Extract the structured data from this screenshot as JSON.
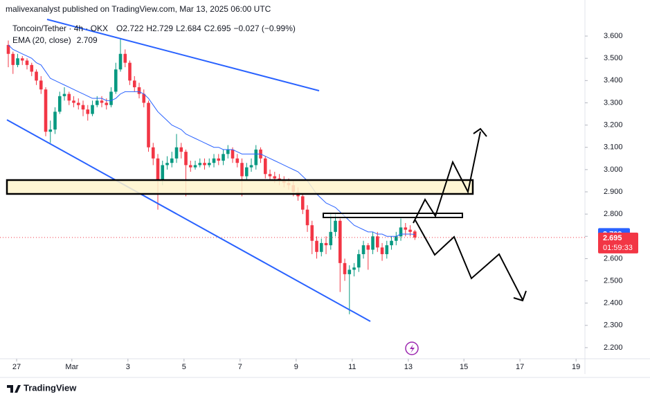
{
  "header": {
    "publisher": "malivexanalyst published on TradingView.com, Mar 13, 2025 06:00 UTC"
  },
  "chart_data": {
    "type": "candlestick",
    "title": "Toncoin/Tether · 4h · OKX",
    "ohlc_legend": [
      {
        "label": "O",
        "value": "2.722"
      },
      {
        "label": "H",
        "value": "2.729"
      },
      {
        "label": "L",
        "value": "2.684"
      },
      {
        "label": "C",
        "value": "2.695"
      }
    ],
    "change": "−0.027 (−0.99%)",
    "up_color": "#089981",
    "down_color": "#f23645",
    "open": [
      3.56,
      3.52,
      3.47,
      3.5,
      3.49,
      3.47,
      3.44,
      3.4,
      3.36,
      3.17,
      3.18,
      3.26,
      3.33,
      3.34,
      3.31,
      3.3,
      3.29,
      3.27,
      3.25,
      3.29,
      3.31,
      3.3,
      3.29,
      3.35,
      3.45,
      3.52,
      3.48,
      3.4,
      3.37,
      3.34,
      3.3,
      3.1,
      3.05,
      2.95,
      3.02,
      3.03,
      3.05,
      3.1,
      3.08,
      3.02,
      3.01,
      3.02,
      3.03,
      3.02,
      3.03,
      3.05,
      3.04,
      3.07,
      3.09,
      3.05,
      3.03,
      2.97,
      3.01,
      3.02,
      3.09,
      3.05,
      2.98,
      2.97,
      2.96,
      2.95,
      2.94,
      2.93,
      2.9,
      2.88,
      2.82,
      2.75,
      2.68,
      2.63,
      2.67,
      2.66,
      2.72,
      2.77,
      2.58,
      2.53,
      2.55,
      2.56,
      2.62,
      2.66,
      2.64,
      2.7,
      2.65,
      2.62,
      2.66,
      2.68,
      2.7,
      2.74,
      2.73,
      2.722
    ],
    "high": [
      3.58,
      3.53,
      3.52,
      3.51,
      3.5,
      3.48,
      3.45,
      3.42,
      3.37,
      3.22,
      3.28,
      3.35,
      3.37,
      3.35,
      3.33,
      3.32,
      3.31,
      3.29,
      3.31,
      3.33,
      3.33,
      3.32,
      3.37,
      3.48,
      3.59,
      3.54,
      3.49,
      3.42,
      3.39,
      3.36,
      3.31,
      3.12,
      3.07,
      3.04,
      3.06,
      3.08,
      3.16,
      3.12,
      3.09,
      3.04,
      3.04,
      3.05,
      3.05,
      3.05,
      3.07,
      3.07,
      3.09,
      3.11,
      3.1,
      3.07,
      3.05,
      3.03,
      3.05,
      3.11,
      3.1,
      3.06,
      3.0,
      2.99,
      2.98,
      2.97,
      2.96,
      2.95,
      2.92,
      2.89,
      2.84,
      2.77,
      2.7,
      2.69,
      2.7,
      2.8,
      2.8,
      2.78,
      2.6,
      2.57,
      2.58,
      2.64,
      2.68,
      2.67,
      2.72,
      2.72,
      2.67,
      2.68,
      2.7,
      2.72,
      2.78,
      2.76,
      2.75,
      2.729
    ],
    "low": [
      3.46,
      3.43,
      3.46,
      3.47,
      3.45,
      3.42,
      3.38,
      3.34,
      3.15,
      3.12,
      3.16,
      3.25,
      3.31,
      3.29,
      3.28,
      3.27,
      3.24,
      3.22,
      3.24,
      3.28,
      3.28,
      3.27,
      3.28,
      3.34,
      3.44,
      3.46,
      3.38,
      3.35,
      3.32,
      3.28,
      3.08,
      3.02,
      2.82,
      2.93,
      3.0,
      3.01,
      3.03,
      3.05,
      2.88,
      2.99,
      3.0,
      3.01,
      3.0,
      3.01,
      3.01,
      3.02,
      3.02,
      3.05,
      3.03,
      3.01,
      2.88,
      2.95,
      2.99,
      3.0,
      3.03,
      2.96,
      2.95,
      2.94,
      2.93,
      2.92,
      2.91,
      2.88,
      2.86,
      2.8,
      2.72,
      2.62,
      2.6,
      2.61,
      2.62,
      2.64,
      2.7,
      2.45,
      2.5,
      2.35,
      2.52,
      2.54,
      2.6,
      2.55,
      2.62,
      2.63,
      2.59,
      2.6,
      2.64,
      2.66,
      2.68,
      2.7,
      2.7,
      2.684
    ],
    "close": [
      3.52,
      3.47,
      3.5,
      3.49,
      3.47,
      3.44,
      3.4,
      3.36,
      3.17,
      3.18,
      3.26,
      3.33,
      3.34,
      3.31,
      3.3,
      3.29,
      3.27,
      3.25,
      3.29,
      3.31,
      3.3,
      3.29,
      3.35,
      3.45,
      3.52,
      3.48,
      3.4,
      3.37,
      3.34,
      3.3,
      3.1,
      3.05,
      2.95,
      3.02,
      3.03,
      3.05,
      3.1,
      3.08,
      3.02,
      3.01,
      3.02,
      3.03,
      3.02,
      3.03,
      3.05,
      3.04,
      3.07,
      3.09,
      3.05,
      3.03,
      2.97,
      3.01,
      3.02,
      3.09,
      3.05,
      2.98,
      2.97,
      2.96,
      2.95,
      2.94,
      2.93,
      2.9,
      2.88,
      2.82,
      2.75,
      2.68,
      2.63,
      2.67,
      2.66,
      2.72,
      2.77,
      2.58,
      2.53,
      2.55,
      2.56,
      2.62,
      2.66,
      2.64,
      2.7,
      2.65,
      2.62,
      2.66,
      2.68,
      2.7,
      2.74,
      2.73,
      2.72,
      2.695
    ],
    "close_label": "2.695",
    "countdown": "01:59:33",
    "series": [
      {
        "name": "EMA (20, close)",
        "color": "#2962ff",
        "value_label": "2.709",
        "values": [
          3.56,
          3.54,
          3.53,
          3.52,
          3.51,
          3.5,
          3.48,
          3.47,
          3.44,
          3.41,
          3.4,
          3.39,
          3.38,
          3.37,
          3.36,
          3.35,
          3.34,
          3.33,
          3.32,
          3.32,
          3.32,
          3.31,
          3.31,
          3.32,
          3.34,
          3.35,
          3.35,
          3.35,
          3.35,
          3.34,
          3.32,
          3.29,
          3.26,
          3.24,
          3.22,
          3.2,
          3.19,
          3.18,
          3.16,
          3.15,
          3.14,
          3.13,
          3.12,
          3.11,
          3.1,
          3.1,
          3.09,
          3.09,
          3.09,
          3.08,
          3.07,
          3.07,
          3.07,
          3.07,
          3.07,
          3.06,
          3.05,
          3.04,
          3.03,
          3.02,
          3.01,
          3.0,
          2.99,
          2.97,
          2.95,
          2.92,
          2.89,
          2.87,
          2.85,
          2.84,
          2.83,
          2.81,
          2.79,
          2.77,
          2.75,
          2.74,
          2.73,
          2.72,
          2.72,
          2.71,
          2.71,
          2.7,
          2.7,
          2.7,
          2.71,
          2.71,
          2.71,
          2.709
        ]
      }
    ],
    "xlim": [
      -1.78,
      123.4
    ],
    "xticks": [
      {
        "value": 1.78,
        "label": "27"
      },
      {
        "value": 13.6,
        "label": "Mar"
      },
      {
        "value": 25.6,
        "label": "3"
      },
      {
        "value": 37.6,
        "label": "5"
      },
      {
        "value": 49.6,
        "label": "7"
      },
      {
        "value": 61.6,
        "label": "9"
      },
      {
        "value": 73.6,
        "label": "11"
      },
      {
        "value": 85.6,
        "label": "13"
      },
      {
        "value": 97.5,
        "label": "15"
      },
      {
        "value": 109.5,
        "label": "17"
      },
      {
        "value": 121.5,
        "label": "19"
      }
    ],
    "ylim": [
      2.15,
      3.762
    ],
    "yticks": [
      {
        "value": 2.2,
        "label": "2.200"
      },
      {
        "value": 2.3,
        "label": "2.300"
      },
      {
        "value": 2.4,
        "label": "2.400"
      },
      {
        "value": 2.5,
        "label": "2.500"
      },
      {
        "value": 2.6,
        "label": "2.600"
      },
      {
        "value": 2.7,
        "label": "2.700"
      },
      {
        "value": 2.8,
        "label": "2.800"
      },
      {
        "value": 2.9,
        "label": "2.900"
      },
      {
        "value": 3.0,
        "label": "3.000"
      },
      {
        "value": 3.1,
        "label": "3.100"
      },
      {
        "value": 3.2,
        "label": "3.200"
      },
      {
        "value": 3.3,
        "label": "3.300"
      },
      {
        "value": 3.4,
        "label": "3.400"
      },
      {
        "value": 3.5,
        "label": "3.500"
      },
      {
        "value": 3.6,
        "label": "3.600"
      }
    ]
  },
  "footer": {
    "brand": "TradingView"
  }
}
